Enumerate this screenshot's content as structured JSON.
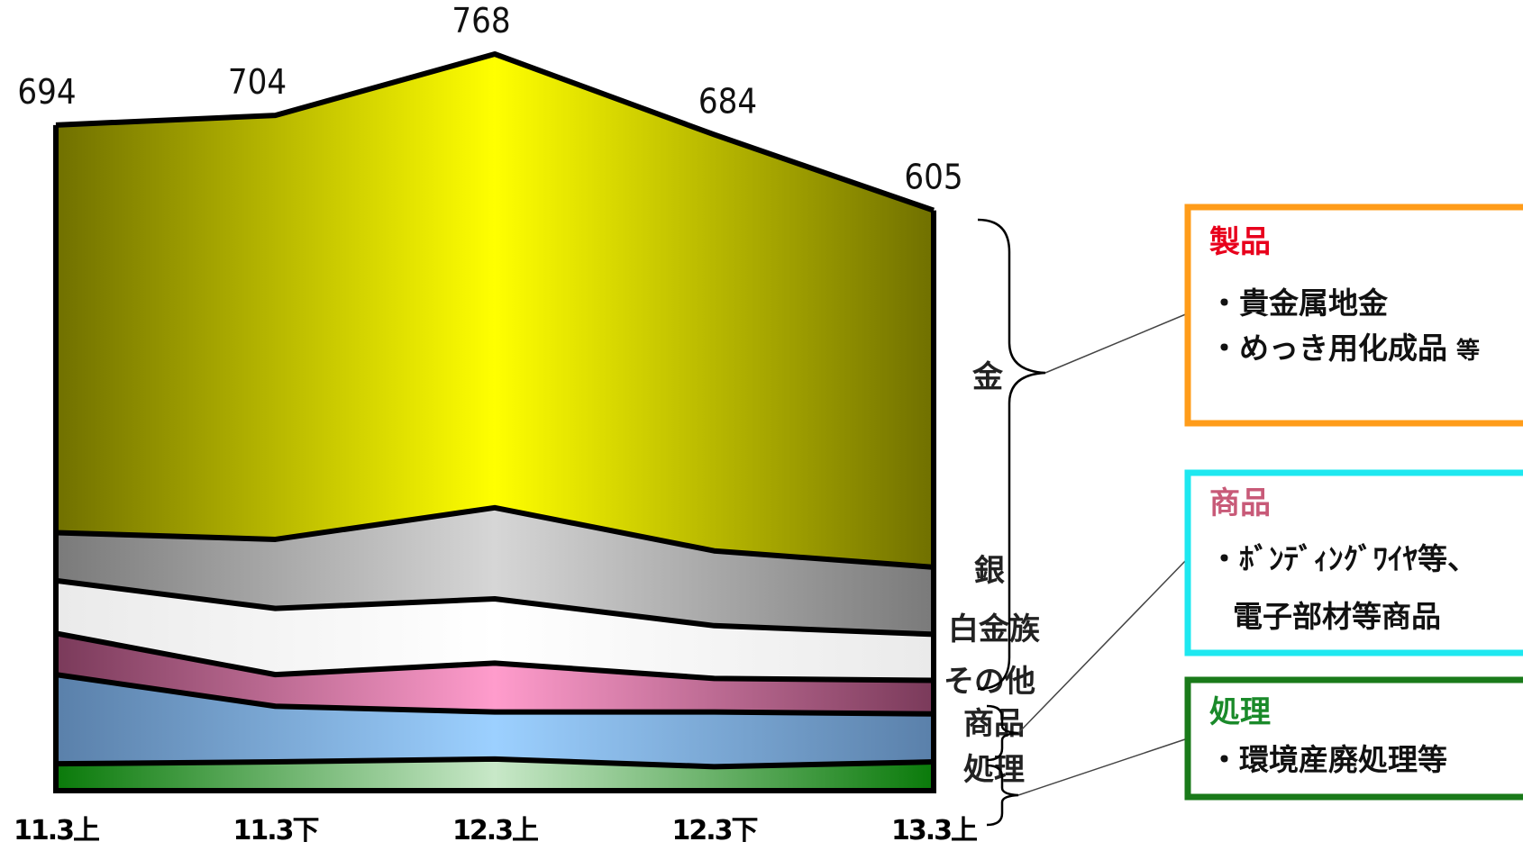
{
  "chart_data": {
    "type": "area",
    "stacked": true,
    "categories": [
      "11.3上",
      "11.3下",
      "12.3上",
      "12.3下",
      "13.3上"
    ],
    "totals": [
      694,
      704,
      768,
      684,
      605
    ],
    "series": [
      {
        "name": "処理",
        "values": [
          28,
          30,
          33,
          25,
          30
        ],
        "color": "#1a8a2a"
      },
      {
        "name": "商品",
        "values": [
          93,
          58,
          49,
          57,
          50
        ],
        "color": "#8ec8f8"
      },
      {
        "name": "その他",
        "values": [
          43,
          33,
          51,
          35,
          35
        ],
        "color": "#f09ac8"
      },
      {
        "name": "白金族",
        "values": [
          55,
          69,
          67,
          55,
          48
        ],
        "color": "#ffffff"
      },
      {
        "name": "銀",
        "values": [
          50,
          72,
          95,
          78,
          70
        ],
        "color": "#c8c8c8"
      },
      {
        "name": "金",
        "values": [
          425,
          442,
          473,
          434,
          372
        ],
        "color": "#ffff00"
      }
    ],
    "ylim": [
      0,
      768
    ],
    "legend": "right"
  },
  "groups": {
    "product": {
      "title": "製品",
      "lines": [
        "・貴金属地金",
        "・めっき用化成品"
      ],
      "suffix": "等",
      "title_color": "#e8001c",
      "border_color": "#ff9c1a"
    },
    "goods": {
      "title": "商品",
      "lines": [
        "・ﾎﾞﾝﾃﾞｨﾝｸﾞﾜｲﾔ等、",
        "電子部材等商品"
      ],
      "title_color": "#c85a78",
      "border_color": "#1ee8f0"
    },
    "processing": {
      "title": "処理",
      "lines": [
        "・環境産廃処理等"
      ],
      "title_color": "#1a8a2a",
      "border_color": "#1a7a1a"
    }
  }
}
